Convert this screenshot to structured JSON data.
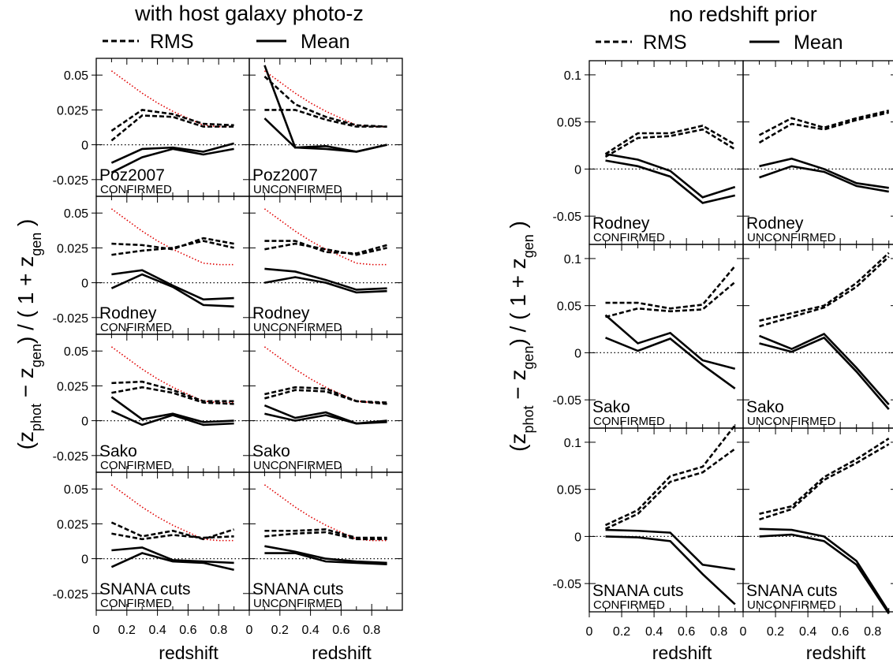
{
  "chart_data": [
    {
      "type": "line",
      "title": "with host galaxy photo-z",
      "legend": [
        "RMS",
        "Mean"
      ],
      "legend_placement": "top",
      "xlabel": "redshift",
      "ylabel_main": "(z",
      "ylabel_sub1": "phot",
      "ylabel_mid": " − z",
      "ylabel_sub2": "gen",
      "ylabel_mid2": ") / ( 1 + z",
      "ylabel_sub3": "gen",
      "ylabel_end": " )",
      "xlim": [
        0,
        1.0
      ],
      "ylim": [
        -0.037,
        0.062
      ],
      "x_ticks": [
        "0",
        "0.2",
        "0.4",
        "0.6",
        "0.8"
      ],
      "x_tick_values": [
        0,
        0.2,
        0.4,
        0.6,
        0.8
      ],
      "y_ticks": [
        "0.05",
        "0.025",
        "0",
        "-0.025"
      ],
      "y_tick_values": [
        0.05,
        0.025,
        0,
        -0.025
      ],
      "x": [
        0.1,
        0.3,
        0.5,
        0.7,
        0.9
      ],
      "reference_x": [
        0.1,
        0.2,
        0.3,
        0.4,
        0.5,
        0.6,
        0.7,
        0.8,
        0.9
      ],
      "reference_line": [
        0.053,
        0.045,
        0.037,
        0.03,
        0.024,
        0.019,
        0.014,
        0.013,
        0.013
      ],
      "reference_color": "#e00000",
      "zero_line": true,
      "panels": [
        {
          "row": 0,
          "col": 0,
          "method": "Poz2007",
          "status": "CONFIRMED",
          "rms": [
            [
              0.01,
              0.025,
              0.022,
              0.015,
              0.014
            ],
            [
              0.003,
              0.021,
              0.02,
              0.013,
              0.013
            ]
          ],
          "mean": [
            [
              -0.013,
              -0.003,
              -0.002,
              -0.005,
              0.001
            ],
            [
              -0.02,
              -0.009,
              -0.003,
              -0.007,
              -0.003
            ]
          ]
        },
        {
          "row": 0,
          "col": 1,
          "method": "Poz2007",
          "status": "UNCONFIRMED",
          "rms": [
            [
              0.049,
              0.029,
              0.02,
              0.014,
              0.013
            ],
            [
              0.025,
              0.025,
              0.018,
              0.013,
              0.013
            ]
          ],
          "mean": [
            [
              0.057,
              -0.002,
              -0.001,
              -0.005,
              0.0
            ],
            [
              0.019,
              -0.002,
              -0.003,
              -0.005,
              0.0
            ]
          ]
        },
        {
          "row": 1,
          "col": 0,
          "method": "Rodney",
          "status": "CONFIRMED",
          "rms": [
            [
              0.028,
              0.027,
              0.024,
              0.032,
              0.028
            ],
            [
              0.02,
              0.023,
              0.025,
              0.03,
              0.025
            ]
          ],
          "mean": [
            [
              0.006,
              0.009,
              -0.002,
              -0.012,
              -0.011
            ],
            [
              -0.004,
              0.006,
              -0.003,
              -0.016,
              -0.017
            ]
          ]
        },
        {
          "row": 1,
          "col": 1,
          "method": "Rodney",
          "status": "UNCONFIRMED",
          "rms": [
            [
              0.03,
              0.03,
              0.022,
              0.021,
              0.027
            ],
            [
              0.024,
              0.028,
              0.024,
              0.02,
              0.025
            ]
          ],
          "mean": [
            [
              0.01,
              0.008,
              0.002,
              -0.005,
              -0.004
            ],
            [
              0.0,
              0.004,
              0.0,
              -0.007,
              -0.006
            ]
          ]
        },
        {
          "row": 2,
          "col": 0,
          "method": "Sako",
          "status": "CONFIRMED",
          "rms": [
            [
              0.027,
              0.028,
              0.022,
              0.014,
              0.014
            ],
            [
              0.02,
              0.024,
              0.02,
              0.013,
              0.012
            ]
          ],
          "mean": [
            [
              0.017,
              0.001,
              0.005,
              -0.001,
              0.0
            ],
            [
              0.007,
              -0.003,
              0.004,
              -0.003,
              -0.002
            ]
          ]
        },
        {
          "row": 2,
          "col": 1,
          "method": "Sako",
          "status": "UNCONFIRMED",
          "rms": [
            [
              0.019,
              0.024,
              0.023,
              0.014,
              0.013
            ],
            [
              0.016,
              0.022,
              0.021,
              0.014,
              0.012
            ]
          ],
          "mean": [
            [
              0.011,
              0.002,
              0.006,
              -0.002,
              0.0
            ],
            [
              0.005,
              0.0,
              0.004,
              -0.002,
              -0.001
            ]
          ]
        },
        {
          "row": 3,
          "col": 0,
          "method": "SNANA cuts",
          "status": "CONFIRMED",
          "rms": [
            [
              0.026,
              0.016,
              0.02,
              0.014,
              0.021
            ],
            [
              0.018,
              0.014,
              0.017,
              0.015,
              0.016
            ]
          ],
          "mean": [
            [
              0.006,
              0.008,
              -0.001,
              -0.002,
              -0.003
            ],
            [
              -0.006,
              0.004,
              -0.002,
              -0.003,
              -0.008
            ]
          ]
        },
        {
          "row": 3,
          "col": 1,
          "method": "SNANA cuts",
          "status": "UNCONFIRMED",
          "rms": [
            [
              0.02,
              0.02,
              0.021,
              0.015,
              0.015
            ],
            [
              0.016,
              0.018,
              0.019,
              0.014,
              0.014
            ]
          ],
          "mean": [
            [
              0.009,
              0.005,
              0.0,
              -0.002,
              -0.003
            ],
            [
              0.004,
              0.004,
              -0.002,
              -0.003,
              -0.004
            ]
          ]
        }
      ]
    },
    {
      "type": "line",
      "title": "no redshift prior",
      "legend": [
        "RMS",
        "Mean"
      ],
      "legend_placement": "top",
      "xlabel": "redshift",
      "ylabel_main": "(z",
      "ylabel_sub1": "phot",
      "ylabel_mid": " − z",
      "ylabel_sub2": "gen",
      "ylabel_mid2": ") / ( 1 + z",
      "ylabel_sub3": "gen",
      "ylabel_end": " )",
      "xlim": [
        0,
        0.95
      ],
      "ylim": [
        -0.08,
        0.115
      ],
      "x_ticks": [
        "0",
        "0.2",
        "0.4",
        "0.6",
        "0.8"
      ],
      "x_tick_values": [
        0,
        0.2,
        0.4,
        0.6,
        0.8
      ],
      "y_ticks": [
        "0.1",
        "0.05",
        "0",
        "-0.05"
      ],
      "y_tick_values": [
        0.1,
        0.05,
        0,
        -0.05
      ],
      "x": [
        0.1,
        0.3,
        0.5,
        0.7,
        0.9
      ],
      "zero_line": true,
      "panels": [
        {
          "row": 0,
          "col": 0,
          "method": "Rodney",
          "status": "CONFIRMED",
          "rms": [
            [
              0.016,
              0.038,
              0.038,
              0.046,
              0.026
            ],
            [
              0.013,
              0.033,
              0.035,
              0.042,
              0.021
            ]
          ],
          "mean": [
            [
              0.016,
              0.01,
              -0.002,
              -0.03,
              -0.019
            ],
            [
              0.009,
              0.003,
              -0.008,
              -0.036,
              -0.028
            ]
          ]
        },
        {
          "row": 0,
          "col": 1,
          "method": "Rodney",
          "status": "UNCONFIRMED",
          "rms": [
            [
              0.036,
              0.054,
              0.044,
              0.054,
              0.062
            ],
            [
              0.028,
              0.048,
              0.042,
              0.052,
              0.06
            ]
          ],
          "mean": [
            [
              0.003,
              0.011,
              0.0,
              -0.015,
              -0.02
            ],
            [
              -0.009,
              0.003,
              -0.003,
              -0.018,
              -0.024
            ]
          ]
        },
        {
          "row": 1,
          "col": 0,
          "method": "Sako",
          "status": "CONFIRMED",
          "rms": [
            [
              0.053,
              0.053,
              0.047,
              0.051,
              0.092
            ],
            [
              0.038,
              0.047,
              0.044,
              0.046,
              0.075
            ]
          ],
          "mean": [
            [
              0.04,
              0.01,
              0.021,
              -0.008,
              -0.017
            ],
            [
              0.016,
              0.002,
              0.015,
              -0.013,
              -0.038
            ]
          ]
        },
        {
          "row": 1,
          "col": 1,
          "method": "Sako",
          "status": "UNCONFIRMED",
          "rms": [
            [
              0.034,
              0.042,
              0.05,
              0.074,
              0.106
            ],
            [
              0.028,
              0.038,
              0.048,
              0.07,
              0.102
            ]
          ],
          "mean": [
            [
              0.018,
              0.004,
              0.02,
              -0.016,
              -0.055
            ],
            [
              0.01,
              0.001,
              0.016,
              -0.02,
              -0.06
            ]
          ]
        },
        {
          "row": 2,
          "col": 0,
          "method": "SNANA cuts",
          "status": "CONFIRMED",
          "rms": [
            [
              0.012,
              0.028,
              0.064,
              0.074,
              0.118
            ],
            [
              0.008,
              0.024,
              0.058,
              0.068,
              0.093
            ]
          ],
          "mean": [
            [
              0.007,
              0.006,
              0.004,
              -0.03,
              -0.035
            ],
            [
              0.0,
              -0.001,
              -0.005,
              -0.04,
              -0.072
            ]
          ]
        },
        {
          "row": 2,
          "col": 1,
          "method": "SNANA cuts",
          "status": "UNCONFIRMED",
          "rms": [
            [
              0.024,
              0.032,
              0.063,
              0.082,
              0.104
            ],
            [
              0.018,
              0.029,
              0.06,
              0.078,
              0.098
            ]
          ],
          "mean": [
            [
              0.008,
              0.007,
              0.0,
              -0.026,
              -0.08
            ],
            [
              0.0,
              0.002,
              -0.005,
              -0.03,
              -0.082
            ]
          ]
        }
      ]
    }
  ]
}
